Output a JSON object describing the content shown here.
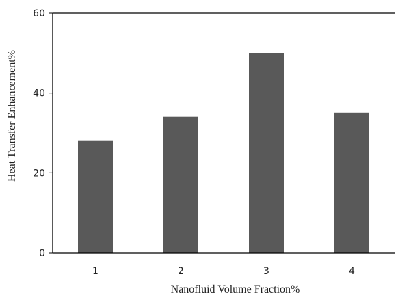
{
  "chart_data": {
    "type": "bar",
    "categories": [
      "1",
      "2",
      "3",
      "4"
    ],
    "values": [
      28,
      34,
      50,
      35
    ],
    "xlabel": "Nanofluid Volume Fraction%",
    "ylabel": "Heat Transfer Enhancement%",
    "ylim": [
      0,
      60
    ],
    "yticks": [
      0,
      20,
      40,
      60
    ],
    "grid": false,
    "bar_color": "#595959",
    "axis_color": "#000000"
  }
}
